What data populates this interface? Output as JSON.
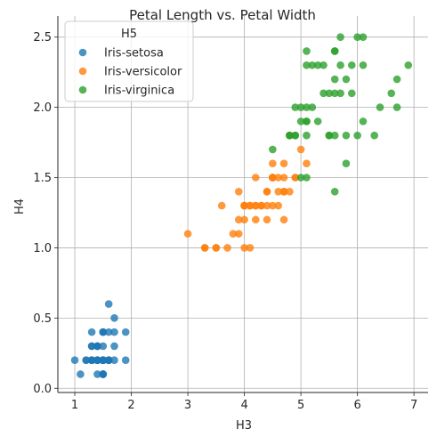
{
  "chart_data": {
    "type": "scatter",
    "title": "Petal Length vs. Petal Width",
    "xlabel": "H3",
    "ylabel": "H4",
    "xlim": [
      0.7,
      7.25
    ],
    "ylim": [
      -0.03,
      2.65
    ],
    "xticks": [
      1,
      2,
      3,
      4,
      5,
      6,
      7
    ],
    "yticks": [
      0.0,
      0.5,
      1.0,
      1.5,
      2.0,
      2.5
    ],
    "xtick_labels": [
      "1",
      "2",
      "3",
      "4",
      "5",
      "6",
      "7"
    ],
    "ytick_labels": [
      "0.0",
      "0.5",
      "1.0",
      "1.5",
      "2.0",
      "2.5"
    ],
    "grid": true,
    "legend": {
      "title": "H5",
      "position": "top-left"
    },
    "series": [
      {
        "name": "Iris-setosa",
        "color": "#1f77b4",
        "points": [
          [
            1.4,
            0.2
          ],
          [
            1.4,
            0.2
          ],
          [
            1.3,
            0.2
          ],
          [
            1.5,
            0.2
          ],
          [
            1.4,
            0.2
          ],
          [
            1.7,
            0.4
          ],
          [
            1.4,
            0.3
          ],
          [
            1.5,
            0.2
          ],
          [
            1.4,
            0.2
          ],
          [
            1.5,
            0.1
          ],
          [
            1.5,
            0.2
          ],
          [
            1.6,
            0.2
          ],
          [
            1.4,
            0.1
          ],
          [
            1.1,
            0.1
          ],
          [
            1.2,
            0.2
          ],
          [
            1.5,
            0.4
          ],
          [
            1.3,
            0.4
          ],
          [
            1.4,
            0.3
          ],
          [
            1.7,
            0.3
          ],
          [
            1.5,
            0.3
          ],
          [
            1.7,
            0.2
          ],
          [
            1.5,
            0.4
          ],
          [
            1.0,
            0.2
          ],
          [
            1.7,
            0.5
          ],
          [
            1.9,
            0.2
          ],
          [
            1.6,
            0.2
          ],
          [
            1.6,
            0.4
          ],
          [
            1.5,
            0.2
          ],
          [
            1.4,
            0.2
          ],
          [
            1.6,
            0.2
          ],
          [
            1.6,
            0.2
          ],
          [
            1.5,
            0.4
          ],
          [
            1.5,
            0.1
          ],
          [
            1.4,
            0.2
          ],
          [
            1.5,
            0.1
          ],
          [
            1.2,
            0.2
          ],
          [
            1.3,
            0.2
          ],
          [
            1.5,
            0.1
          ],
          [
            1.3,
            0.2
          ],
          [
            1.5,
            0.2
          ],
          [
            1.3,
            0.3
          ],
          [
            1.3,
            0.3
          ],
          [
            1.3,
            0.2
          ],
          [
            1.6,
            0.6
          ],
          [
            1.9,
            0.4
          ],
          [
            1.4,
            0.3
          ],
          [
            1.6,
            0.2
          ],
          [
            1.4,
            0.2
          ],
          [
            1.5,
            0.2
          ],
          [
            1.4,
            0.2
          ]
        ]
      },
      {
        "name": "Iris-versicolor",
        "color": "#ff7f0e",
        "points": [
          [
            4.7,
            1.4
          ],
          [
            4.5,
            1.5
          ],
          [
            4.9,
            1.5
          ],
          [
            4.0,
            1.3
          ],
          [
            4.6,
            1.5
          ],
          [
            4.5,
            1.3
          ],
          [
            4.7,
            1.6
          ],
          [
            3.3,
            1.0
          ],
          [
            4.6,
            1.3
          ],
          [
            3.9,
            1.4
          ],
          [
            3.5,
            1.0
          ],
          [
            4.2,
            1.5
          ],
          [
            4.0,
            1.0
          ],
          [
            4.7,
            1.4
          ],
          [
            3.6,
            1.3
          ],
          [
            4.4,
            1.4
          ],
          [
            4.5,
            1.5
          ],
          [
            4.1,
            1.0
          ],
          [
            4.5,
            1.5
          ],
          [
            3.9,
            1.1
          ],
          [
            4.8,
            1.8
          ],
          [
            4.0,
            1.3
          ],
          [
            4.9,
            1.5
          ],
          [
            4.7,
            1.2
          ],
          [
            4.3,
            1.3
          ],
          [
            4.4,
            1.4
          ],
          [
            4.8,
            1.4
          ],
          [
            5.0,
            1.7
          ],
          [
            4.5,
            1.5
          ],
          [
            3.5,
            1.0
          ],
          [
            3.8,
            1.1
          ],
          [
            3.7,
            1.0
          ],
          [
            3.9,
            1.2
          ],
          [
            5.1,
            1.6
          ],
          [
            4.5,
            1.5
          ],
          [
            4.5,
            1.6
          ],
          [
            4.7,
            1.5
          ],
          [
            4.4,
            1.3
          ],
          [
            4.1,
            1.3
          ],
          [
            4.0,
            1.3
          ],
          [
            4.4,
            1.2
          ],
          [
            4.6,
            1.4
          ],
          [
            4.0,
            1.2
          ],
          [
            3.3,
            1.0
          ],
          [
            4.2,
            1.3
          ],
          [
            4.2,
            1.2
          ],
          [
            4.2,
            1.3
          ],
          [
            4.3,
            1.3
          ],
          [
            3.0,
            1.1
          ],
          [
            4.1,
            1.3
          ]
        ]
      },
      {
        "name": "Iris-virginica",
        "color": "#2ca02c",
        "points": [
          [
            6.0,
            2.5
          ],
          [
            5.1,
            1.9
          ],
          [
            5.9,
            2.1
          ],
          [
            5.6,
            1.8
          ],
          [
            5.8,
            2.2
          ],
          [
            6.6,
            2.1
          ],
          [
            4.5,
            1.7
          ],
          [
            6.3,
            1.8
          ],
          [
            5.8,
            1.8
          ],
          [
            6.1,
            2.5
          ],
          [
            5.1,
            2.0
          ],
          [
            5.3,
            1.9
          ],
          [
            5.5,
            2.1
          ],
          [
            5.0,
            2.0
          ],
          [
            5.1,
            2.4
          ],
          [
            5.3,
            2.3
          ],
          [
            5.5,
            1.8
          ],
          [
            6.7,
            2.2
          ],
          [
            6.9,
            2.3
          ],
          [
            5.0,
            1.5
          ],
          [
            5.7,
            2.3
          ],
          [
            4.9,
            2.0
          ],
          [
            6.7,
            2.0
          ],
          [
            4.9,
            1.8
          ],
          [
            5.7,
            2.1
          ],
          [
            6.0,
            1.8
          ],
          [
            4.8,
            1.8
          ],
          [
            4.9,
            1.8
          ],
          [
            5.6,
            2.1
          ],
          [
            5.8,
            1.6
          ],
          [
            6.1,
            1.9
          ],
          [
            6.4,
            2.0
          ],
          [
            5.6,
            2.2
          ],
          [
            5.1,
            1.5
          ],
          [
            5.6,
            1.4
          ],
          [
            6.1,
            2.3
          ],
          [
            5.6,
            2.4
          ],
          [
            5.5,
            1.8
          ],
          [
            4.8,
            1.8
          ],
          [
            5.4,
            2.1
          ],
          [
            5.6,
            2.4
          ],
          [
            5.1,
            2.3
          ],
          [
            5.1,
            1.9
          ],
          [
            5.9,
            2.3
          ],
          [
            5.7,
            2.5
          ],
          [
            5.2,
            2.3
          ],
          [
            5.0,
            1.9
          ],
          [
            5.2,
            2.0
          ],
          [
            5.4,
            2.3
          ],
          [
            5.1,
            1.8
          ]
        ]
      }
    ]
  }
}
